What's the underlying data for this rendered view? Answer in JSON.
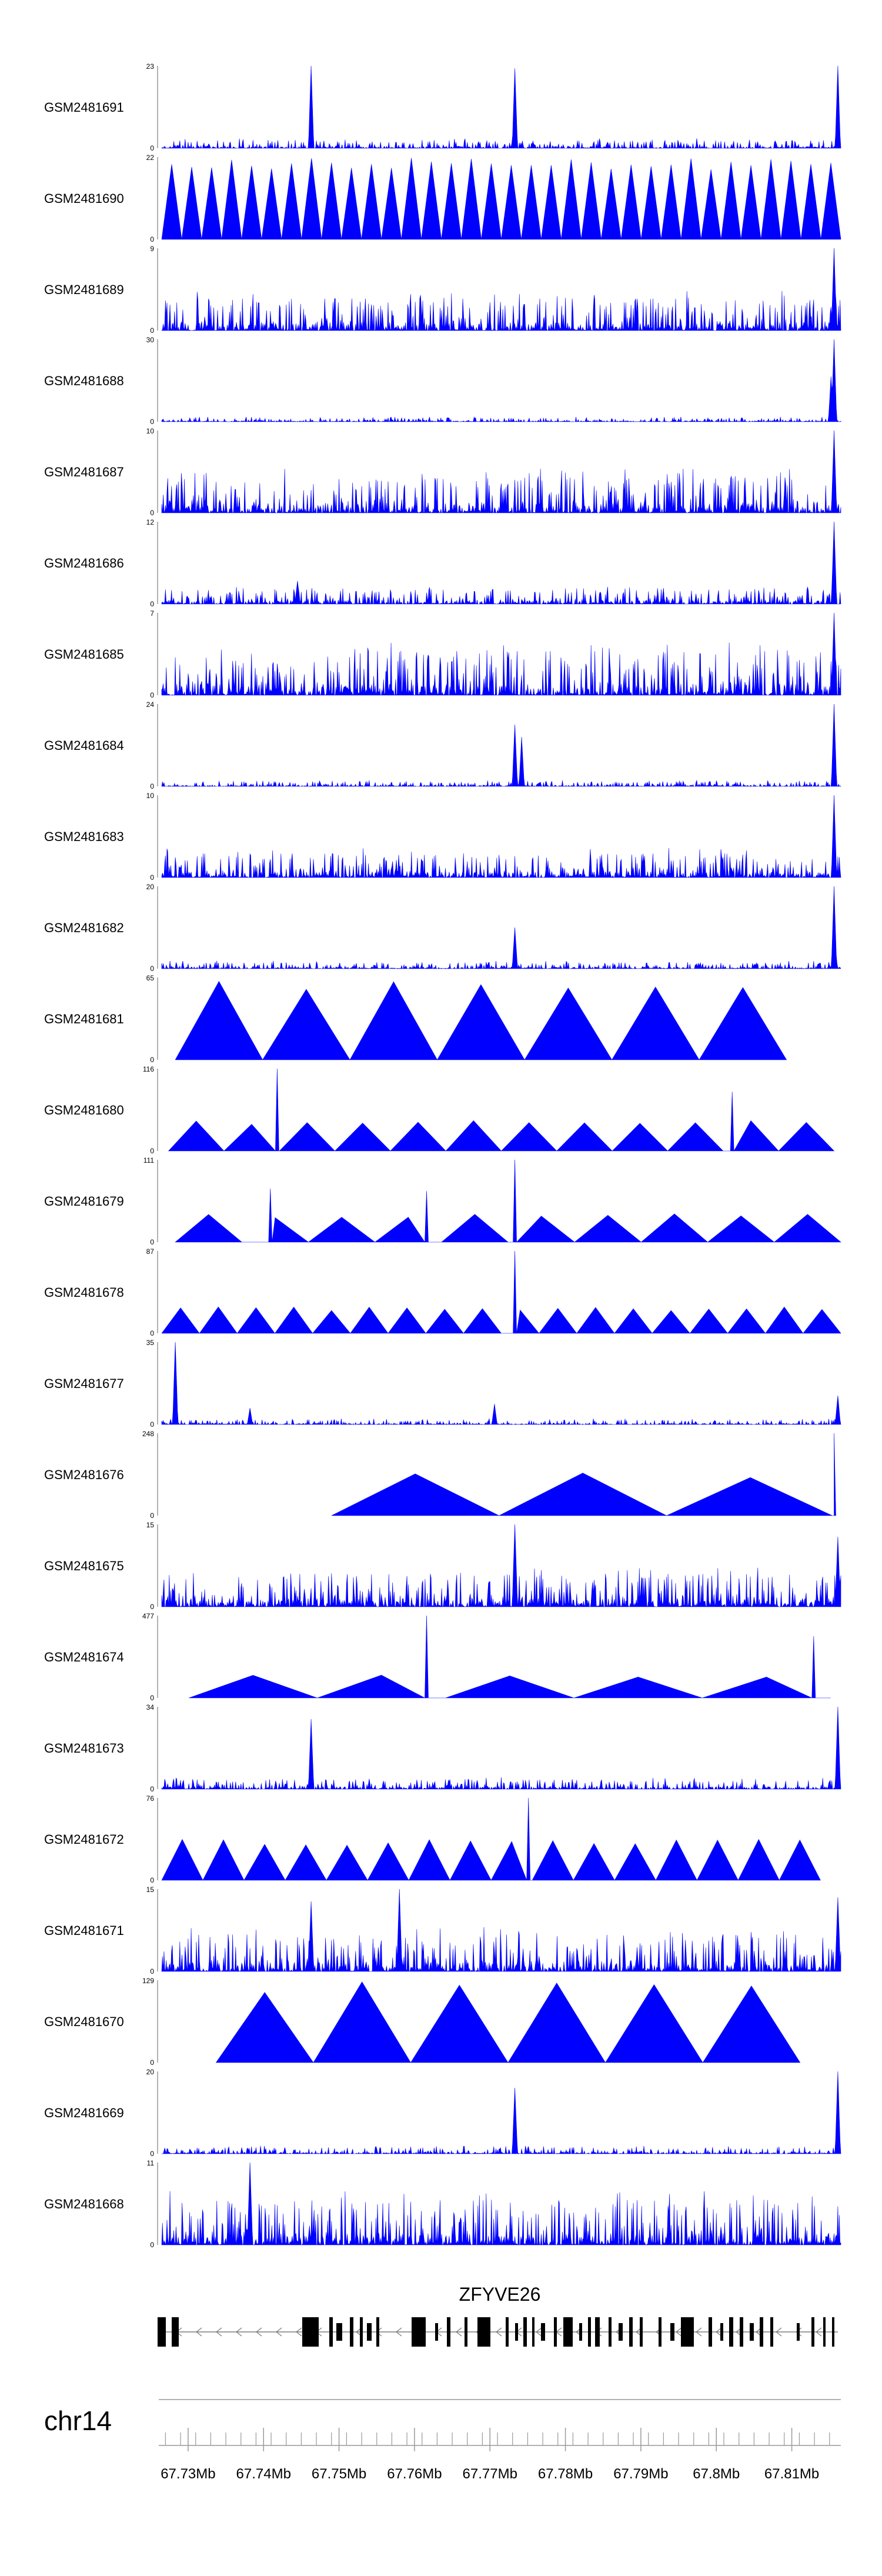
{
  "chart_data": {
    "type": "area",
    "color": "#0000ff",
    "axis_color": "#7f7f7f",
    "tracks": [
      {
        "name": "GSM2481691",
        "ymax": 23,
        "ymin": 0,
        "pattern": "spiky",
        "base": 0.1,
        "peaks": [
          [
            0.22,
            1.0
          ],
          [
            0.52,
            0.97
          ],
          [
            0.995,
            1.0
          ]
        ]
      },
      {
        "name": "GSM2481690",
        "ymax": 22,
        "ymin": 0,
        "pattern": "triangles",
        "count": 34,
        "start": 0.0,
        "end": 1.0,
        "height": 1.0
      },
      {
        "name": "GSM2481689",
        "ymax": 9,
        "ymin": 0,
        "pattern": "spiky",
        "base": 0.4,
        "peaks": [
          [
            0.99,
            1.0
          ]
        ]
      },
      {
        "name": "GSM2481688",
        "ymax": 30,
        "ymin": 0,
        "pattern": "spiky",
        "base": 0.05,
        "peaks": [
          [
            0.99,
            1.0
          ],
          [
            0.985,
            0.55
          ]
        ]
      },
      {
        "name": "GSM2481687",
        "ymax": 10,
        "ymin": 0,
        "pattern": "spiky",
        "base": 0.45,
        "peaks": [
          [
            0.99,
            1.0
          ]
        ]
      },
      {
        "name": "GSM2481686",
        "ymax": 12,
        "ymin": 0,
        "pattern": "spiky",
        "base": 0.18,
        "peaks": [
          [
            0.99,
            1.0
          ],
          [
            0.2,
            0.28
          ]
        ]
      },
      {
        "name": "GSM2481685",
        "ymax": 7,
        "ymin": 0,
        "pattern": "spiky",
        "base": 0.55,
        "peaks": [
          [
            0.99,
            1.0
          ]
        ]
      },
      {
        "name": "GSM2481684",
        "ymax": 24,
        "ymin": 0,
        "pattern": "spiky",
        "base": 0.06,
        "peaks": [
          [
            0.52,
            0.75
          ],
          [
            0.53,
            0.6
          ],
          [
            0.99,
            1.0
          ]
        ]
      },
      {
        "name": "GSM2481683",
        "ymax": 10,
        "ymin": 0,
        "pattern": "spiky",
        "base": 0.3,
        "peaks": [
          [
            0.99,
            1.0
          ]
        ]
      },
      {
        "name": "GSM2481682",
        "ymax": 20,
        "ymin": 0,
        "pattern": "spiky",
        "base": 0.08,
        "peaks": [
          [
            0.52,
            0.5
          ],
          [
            0.99,
            1.0
          ]
        ]
      },
      {
        "name": "GSM2481681",
        "ymax": 65,
        "ymin": 0,
        "pattern": "triangles",
        "count": 7,
        "start": 0.02,
        "end": 0.92,
        "height": 1.0
      },
      {
        "name": "GSM2481680",
        "ymax": 116,
        "ymin": 0,
        "pattern": "triangles",
        "count": 12,
        "start": 0.01,
        "end": 0.99,
        "height": 0.38,
        "peaks": [
          [
            0.17,
            1.0
          ],
          [
            0.84,
            0.72
          ]
        ]
      },
      {
        "name": "GSM2481679",
        "ymax": 111,
        "ymin": 0,
        "pattern": "triangles",
        "count": 10,
        "start": 0.02,
        "end": 1.0,
        "height": 0.35,
        "peaks": [
          [
            0.16,
            0.65
          ],
          [
            0.39,
            0.62
          ],
          [
            0.52,
            1.0
          ]
        ]
      },
      {
        "name": "GSM2481678",
        "ymax": 87,
        "ymin": 0,
        "pattern": "triangles",
        "count": 18,
        "start": 0.0,
        "end": 1.0,
        "height": 0.32,
        "peaks": [
          [
            0.52,
            1.0
          ]
        ]
      },
      {
        "name": "GSM2481677",
        "ymax": 35,
        "ymin": 0,
        "pattern": "spiky",
        "base": 0.06,
        "peaks": [
          [
            0.02,
            1.0
          ],
          [
            0.13,
            0.2
          ],
          [
            0.49,
            0.25
          ],
          [
            0.995,
            0.35
          ]
        ]
      },
      {
        "name": "GSM2481676",
        "ymax": 248,
        "ymin": 0,
        "pattern": "triangles",
        "count": 3,
        "start": 0.25,
        "end": 0.99,
        "height": 0.52,
        "peaks": [
          [
            0.99,
            1.0
          ]
        ]
      },
      {
        "name": "GSM2481675",
        "ymax": 15,
        "ymin": 0,
        "pattern": "spiky",
        "base": 0.4,
        "peaks": [
          [
            0.52,
            1.0
          ],
          [
            0.995,
            0.85
          ]
        ]
      },
      {
        "name": "GSM2481674",
        "ymax": 477,
        "ymin": 0,
        "pattern": "triangles",
        "count": 5,
        "start": 0.04,
        "end": 0.985,
        "height": 0.28,
        "peaks": [
          [
            0.39,
            1.0
          ],
          [
            0.96,
            0.75
          ]
        ]
      },
      {
        "name": "GSM2481673",
        "ymax": 34,
        "ymin": 0,
        "pattern": "spiky",
        "base": 0.12,
        "peaks": [
          [
            0.22,
            0.85
          ],
          [
            0.995,
            1.0
          ]
        ]
      },
      {
        "name": "GSM2481672",
        "ymax": 76,
        "ymin": 0,
        "pattern": "triangles",
        "count": 16,
        "start": 0.0,
        "end": 0.97,
        "height": 0.5,
        "peaks": [
          [
            0.54,
            1.0
          ]
        ]
      },
      {
        "name": "GSM2481671",
        "ymax": 15,
        "ymin": 0,
        "pattern": "spiky",
        "base": 0.45,
        "peaks": [
          [
            0.22,
            0.85
          ],
          [
            0.35,
            1.0
          ],
          [
            0.995,
            0.9
          ]
        ]
      },
      {
        "name": "GSM2481670",
        "ymax": 129,
        "ymin": 0,
        "pattern": "triangles",
        "count": 6,
        "start": 0.08,
        "end": 0.94,
        "height": 1.0
      },
      {
        "name": "GSM2481669",
        "ymax": 20,
        "ymin": 0,
        "pattern": "spiky",
        "base": 0.08,
        "peaks": [
          [
            0.52,
            0.8
          ],
          [
            0.995,
            1.0
          ]
        ]
      },
      {
        "name": "GSM2481668",
        "ymax": 11,
        "ymin": 0,
        "pattern": "spiky",
        "base": 0.55,
        "peaks": [
          [
            0.13,
            1.0
          ]
        ]
      }
    ],
    "gene": {
      "name": "ZFYVE26",
      "strand": "-"
    },
    "chromosome": "chr14",
    "x_range_mb": [
      67.7265,
      67.8165
    ],
    "x_ticks": [
      "67.73Mb",
      "67.74Mb",
      "67.75Mb",
      "67.76Mb",
      "67.77Mb",
      "67.78Mb",
      "67.79Mb",
      "67.8Mb",
      "67.81Mb"
    ],
    "x_tick_values_mb": [
      67.73,
      67.74,
      67.75,
      67.76,
      67.77,
      67.78,
      67.79,
      67.8,
      67.81
    ]
  }
}
